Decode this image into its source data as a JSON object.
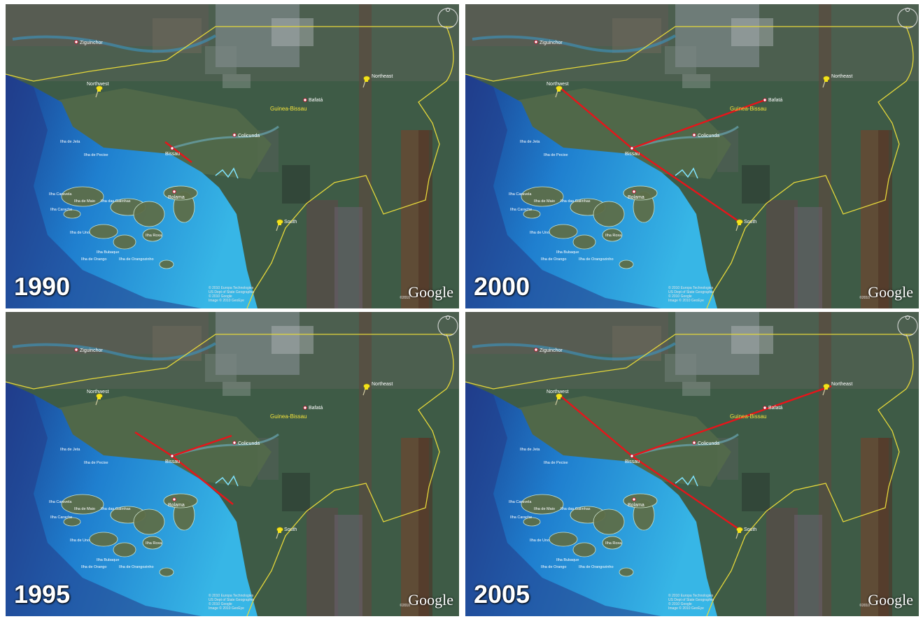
{
  "panels": [
    {
      "year": "1990",
      "links": []
    },
    {
      "year": "2000",
      "links": [
        "northwest",
        "bafata",
        "south"
      ]
    },
    {
      "year": "1995",
      "links": []
    },
    {
      "year": "2005",
      "links": [
        "northwest",
        "northeast",
        "south"
      ]
    }
  ],
  "labels": {
    "ziguinchor": "Ziguinchor",
    "northwest": "Northwest",
    "northeast": "Northeast",
    "bafata": "Bafatá",
    "guinea_bissau": "Guinea-Bissau",
    "colicunda": "Colicunda",
    "bissau": "Bissau",
    "ilha_de_pecixe": "Ilha de Pecixe",
    "ilha_de_jeta": "Ilha de Jeta",
    "bolama": "Bolama",
    "ilha_caravela": "Ilha Caravela",
    "ilha_de_maio": "Ilha de Maio",
    "ilha_das_galinhas": "Ilha das Galinhas",
    "ilha_carache": "Ilha Carache",
    "ilha_de_uno": "Ilha de Uno",
    "ilha_roxa": "Ilha Roxa",
    "ilha_bubaque": "Ilha Bubaque",
    "ilha_de_orango": "Ilha de Orango",
    "ilha_de_orangozinho": "Ilha de Orangozinho",
    "south": "South"
  },
  "brand": "Google",
  "copyright_lines": [
    "© 2010 Europa Technologies",
    "US Dept of State Geographer",
    "© 2010 Google",
    "Image © 2010 GeoEye"
  ],
  "copyright_year": "©2010",
  "colors": {
    "link_line": "#e8141a",
    "border_line": "#e6d83a",
    "pushpin": "#f3e21b"
  }
}
